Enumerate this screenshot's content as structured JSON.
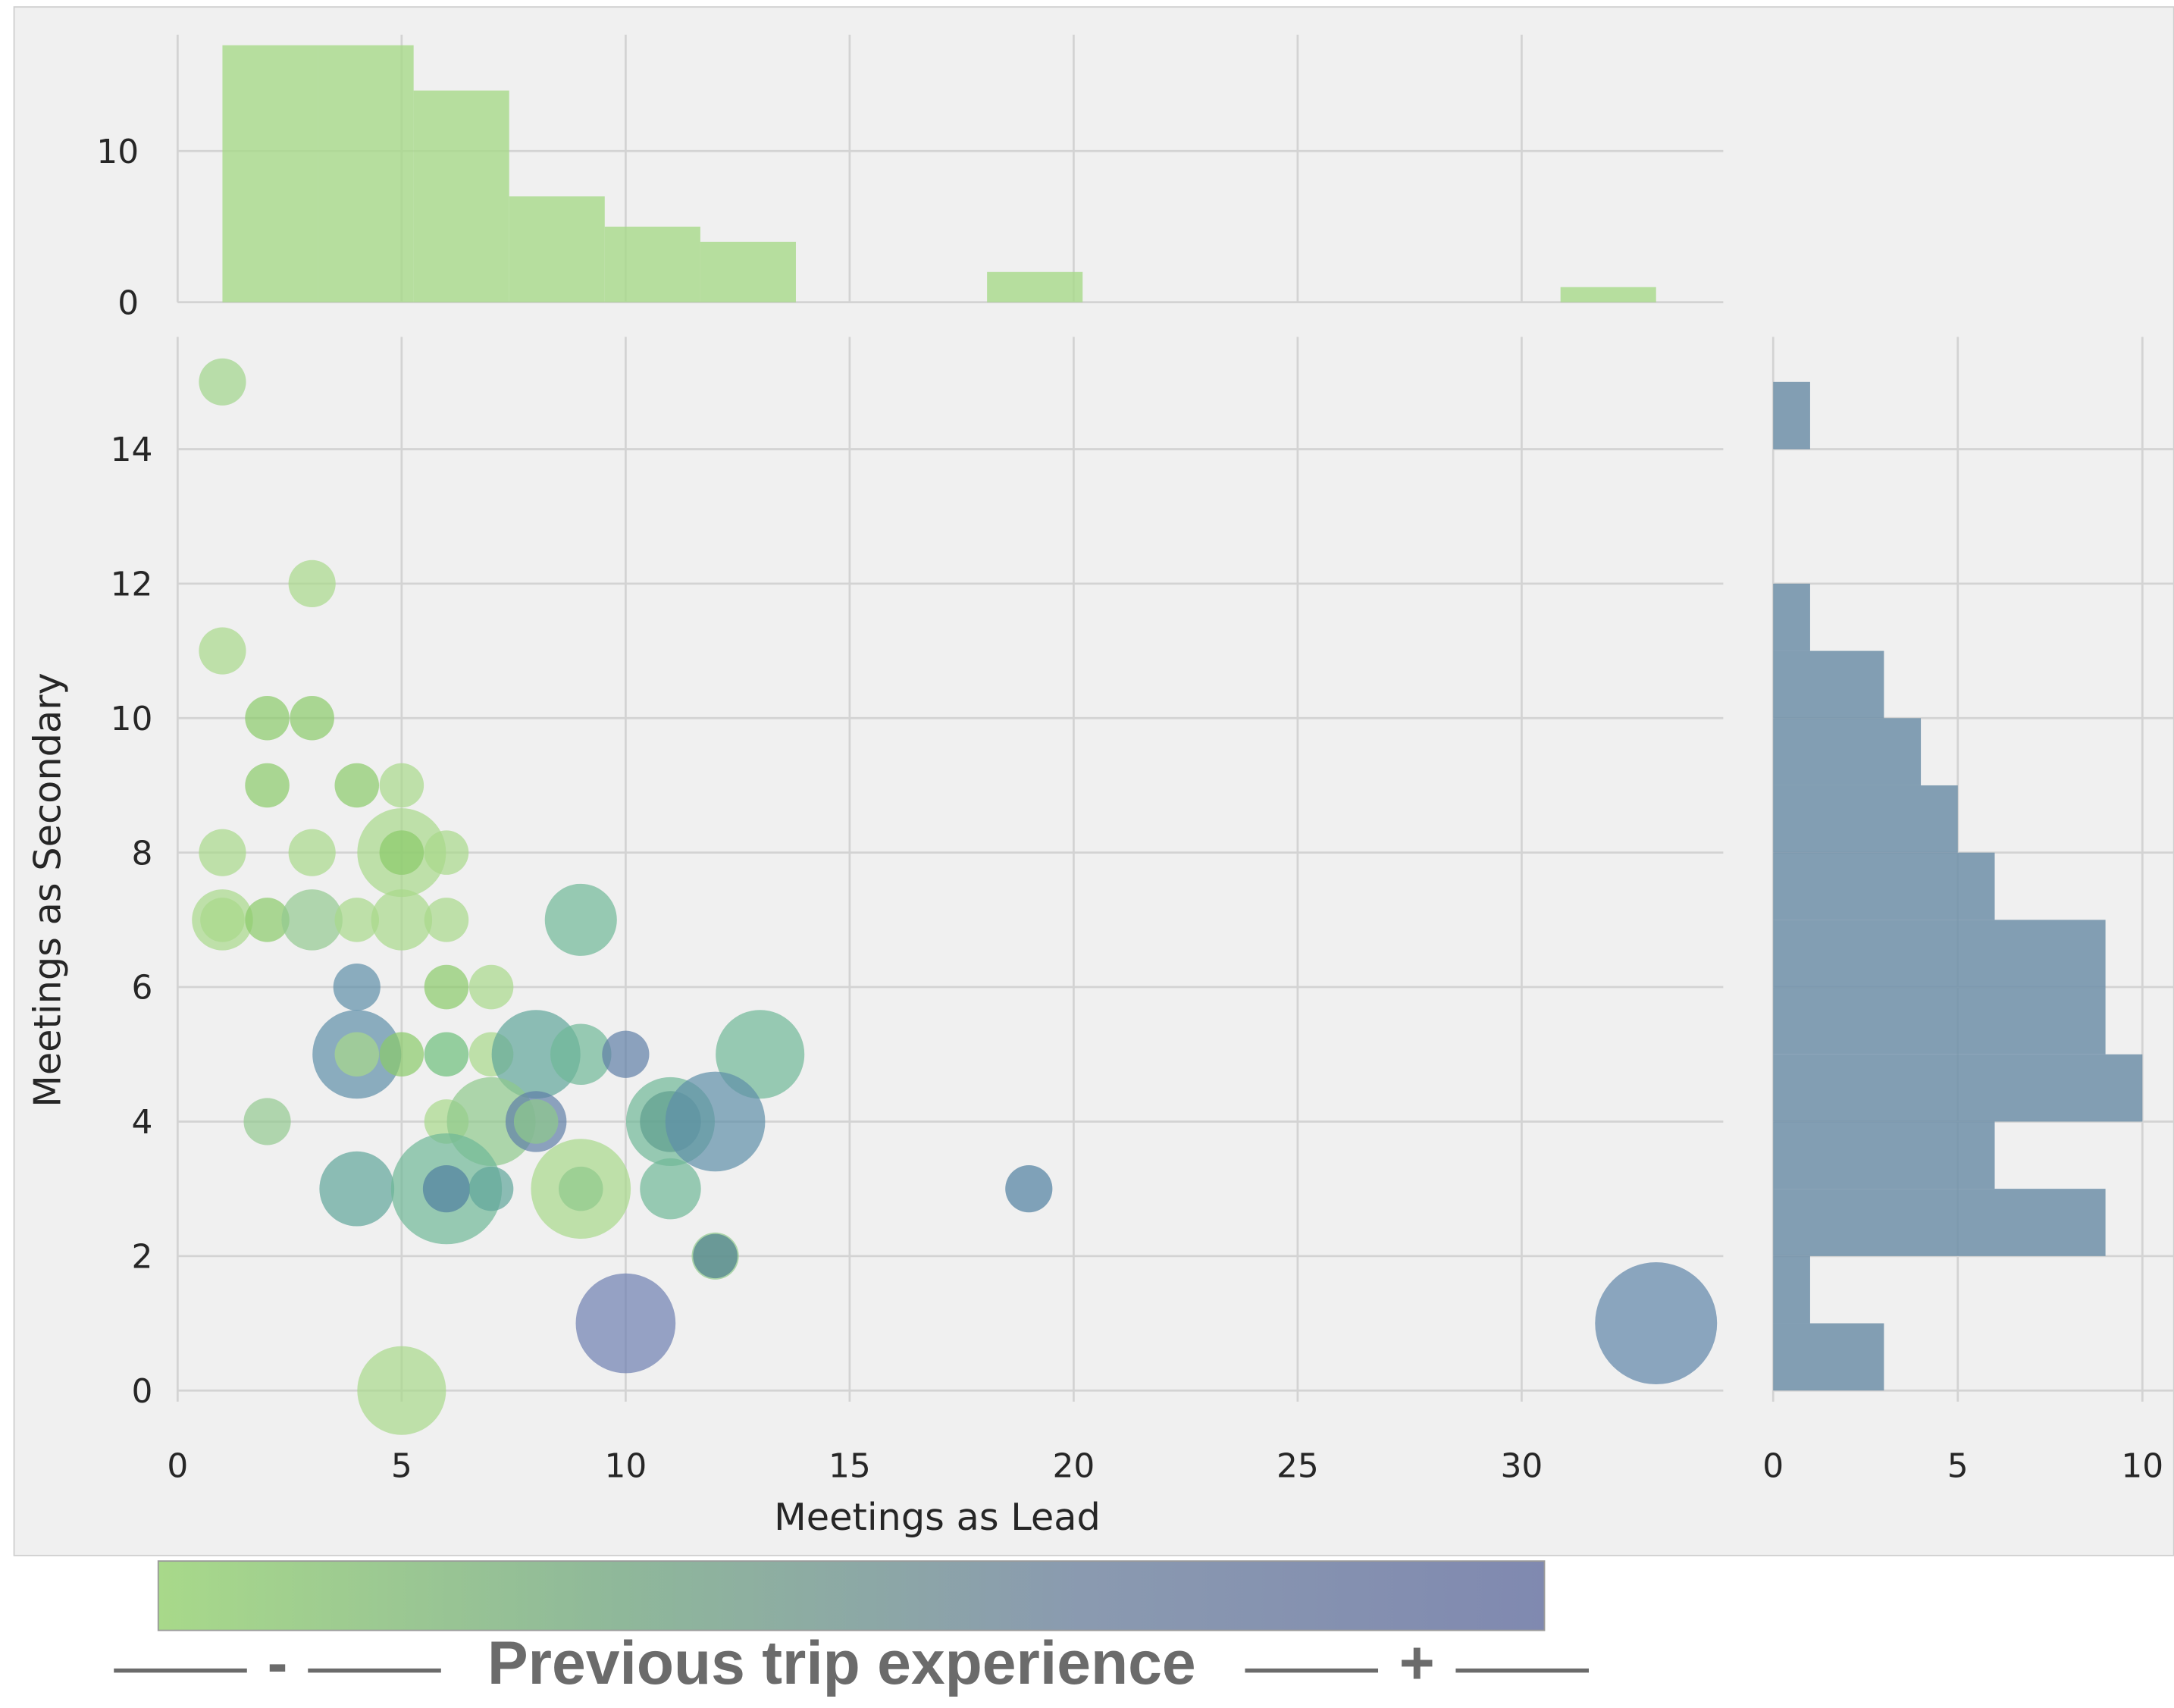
{
  "chart_data": [
    {
      "type": "scatter",
      "xlabel": "Meetings as Lead",
      "ylabel": "Meetings as Secondary",
      "xlim": [
        0,
        34.5
      ],
      "ylim": [
        0,
        15.67
      ],
      "xticks": [
        0,
        5,
        10,
        15,
        20,
        25,
        30
      ],
      "yticks": [
        0,
        2,
        4,
        6,
        8,
        10,
        12,
        14
      ],
      "grid": true,
      "opacity": 0.7,
      "x": [
        1,
        3,
        1,
        2,
        3,
        2,
        4,
        5,
        1,
        3,
        5,
        5,
        6,
        1,
        1,
        2,
        3,
        4,
        5,
        6,
        9,
        4,
        6,
        7,
        4,
        4,
        5,
        6,
        7,
        8,
        9,
        10,
        13,
        2,
        6,
        7,
        8,
        8,
        11,
        11,
        12,
        4,
        6,
        6,
        7,
        9,
        9,
        11,
        19,
        12,
        12,
        10,
        5,
        33
      ],
      "y": [
        15,
        12,
        11,
        10,
        10,
        9,
        9,
        9,
        8,
        8,
        8,
        8,
        8,
        7,
        7,
        7,
        7,
        7,
        7,
        7,
        7,
        6,
        6,
        6,
        5,
        5,
        5,
        5,
        5,
        5,
        5,
        5,
        5,
        4,
        4,
        4,
        4,
        4,
        4,
        4,
        4,
        3,
        3,
        3,
        3,
        3,
        3,
        3,
        3,
        2,
        2,
        1,
        0,
        1
      ],
      "sizes": [
        17,
        17,
        17,
        16,
        16,
        16,
        16,
        16,
        17,
        17,
        32,
        16,
        16,
        22,
        16,
        16,
        22,
        16,
        22,
        16,
        26,
        17,
        16,
        16,
        32,
        16,
        16,
        16,
        16,
        32,
        22,
        17,
        32,
        17,
        16,
        32,
        22,
        16,
        32,
        22,
        36,
        27,
        40,
        17,
        16,
        36,
        16,
        22,
        17,
        17,
        16,
        36,
        32,
        44
      ],
      "colors": [
        "#9fd48a",
        "#a8d98a",
        "#a8d98a",
        "#8acb6a",
        "#8acb6a",
        "#8acb6a",
        "#8acb6a",
        "#a8d98a",
        "#a8d98a",
        "#a8d98a",
        "#a8d98a",
        "#8acb6a",
        "#a8d98a",
        "#a8d98a",
        "#a8d98a",
        "#8acb6a",
        "#93c990",
        "#a8d98a",
        "#a8d98a",
        "#a8d98a",
        "#6fb897",
        "#5e8fa8",
        "#8acb6a",
        "#a8d98a",
        "#5e8fa8",
        "#a8d98a",
        "#8acb6a",
        "#6cbf7a",
        "#a8d98a",
        "#5fa59a",
        "#6fb897",
        "#607fa6",
        "#6fb897",
        "#93c990",
        "#a8d98a",
        "#8fc98c",
        "#607fa6",
        "#8fc98c",
        "#6fb897",
        "#5e9e8e",
        "#5e8fa8",
        "#5fa59a",
        "#6fb897",
        "#4e7fa0",
        "#5fa59a",
        "#a8d98a",
        "#8fc98c",
        "#6fb897",
        "#4e7fa0",
        "#8fc98c",
        "#4e7f8f",
        "#6e7fb0",
        "#a8d98a",
        "#5e85a8"
      ],
      "colorbar": {
        "label": "Previous trip experience",
        "low": "-",
        "high": "+",
        "colors": [
          "#a8d98a",
          "#8fb89a",
          "#8a9ab0",
          "#8089b0"
        ]
      }
    },
    {
      "type": "histogram",
      "orientation": "vertical",
      "bins": [
        1,
        3.133,
        5.267,
        7.4,
        9.533,
        11.667,
        13.8,
        15.933,
        18.067,
        20.2,
        22.333,
        24.467,
        26.6,
        28.733,
        30.867,
        33
      ],
      "values": [
        17,
        17,
        14,
        7,
        5,
        4,
        0,
        0,
        2,
        0,
        0,
        0,
        0,
        0,
        1
      ],
      "ylim": [
        0,
        17.7
      ],
      "yticks": [
        0,
        10
      ],
      "color": "#a8d98a",
      "opacity": 0.8
    },
    {
      "type": "histogram",
      "orientation": "horizontal",
      "bins": [
        0,
        1,
        2,
        3,
        4,
        5,
        6,
        7,
        8,
        9,
        10,
        11,
        12,
        13,
        14,
        15
      ],
      "values": [
        3,
        1,
        9,
        6,
        10,
        9,
        9,
        6,
        5,
        4,
        3,
        1,
        0,
        0,
        1
      ],
      "xlim": [
        0,
        10.85
      ],
      "xticks": [
        0,
        5,
        10
      ],
      "color": "#6f8fa8",
      "opacity": 0.85
    }
  ]
}
